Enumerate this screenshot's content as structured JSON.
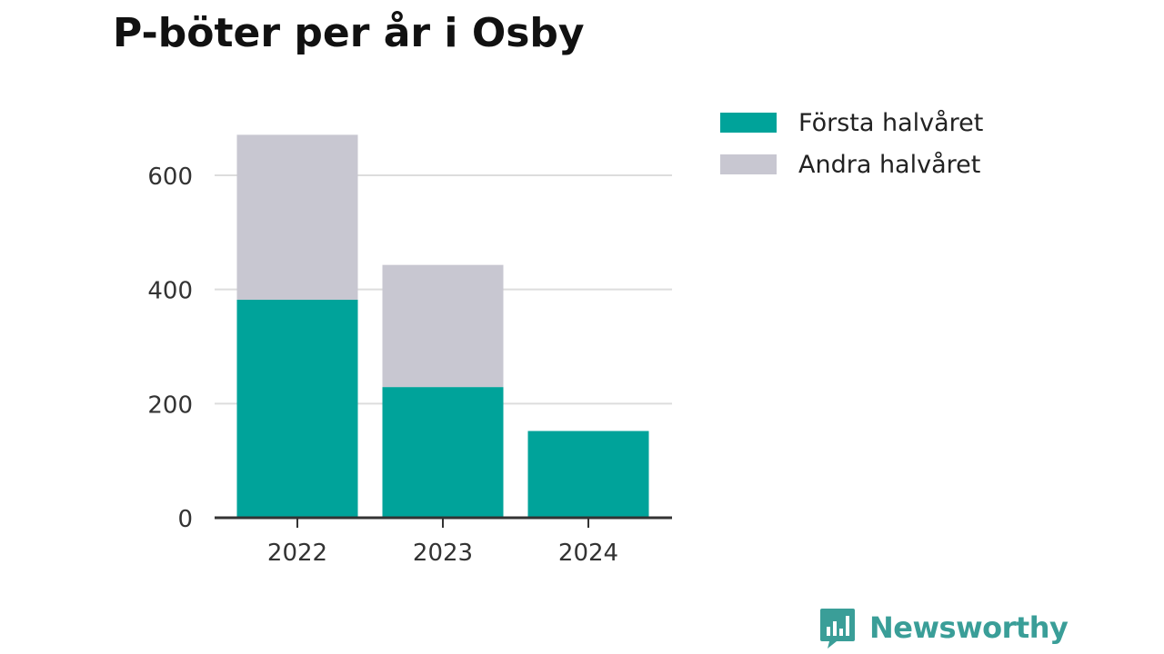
{
  "colors": {
    "first_half": "#00a39a",
    "second_half": "#c8c7d1",
    "grid": "#dddddd",
    "axis": "#333333",
    "brand": "#3a9e98"
  },
  "chart_data": {
    "type": "bar",
    "stacked": true,
    "title": "P-böter per år i Osby",
    "categories": [
      "2022",
      "2023",
      "2024"
    ],
    "series": [
      {
        "name": "Första halvåret",
        "values": [
          382,
          229,
          152
        ]
      },
      {
        "name": "Andra halvåret",
        "values": [
          289,
          214,
          0
        ]
      }
    ],
    "ylim": [
      0,
      700
    ],
    "yticks": [
      0,
      200,
      400,
      600
    ],
    "grid": true,
    "legend_position": "right"
  },
  "branding": {
    "name": "Newsworthy",
    "icon": "newsworthy-logo-icon"
  }
}
